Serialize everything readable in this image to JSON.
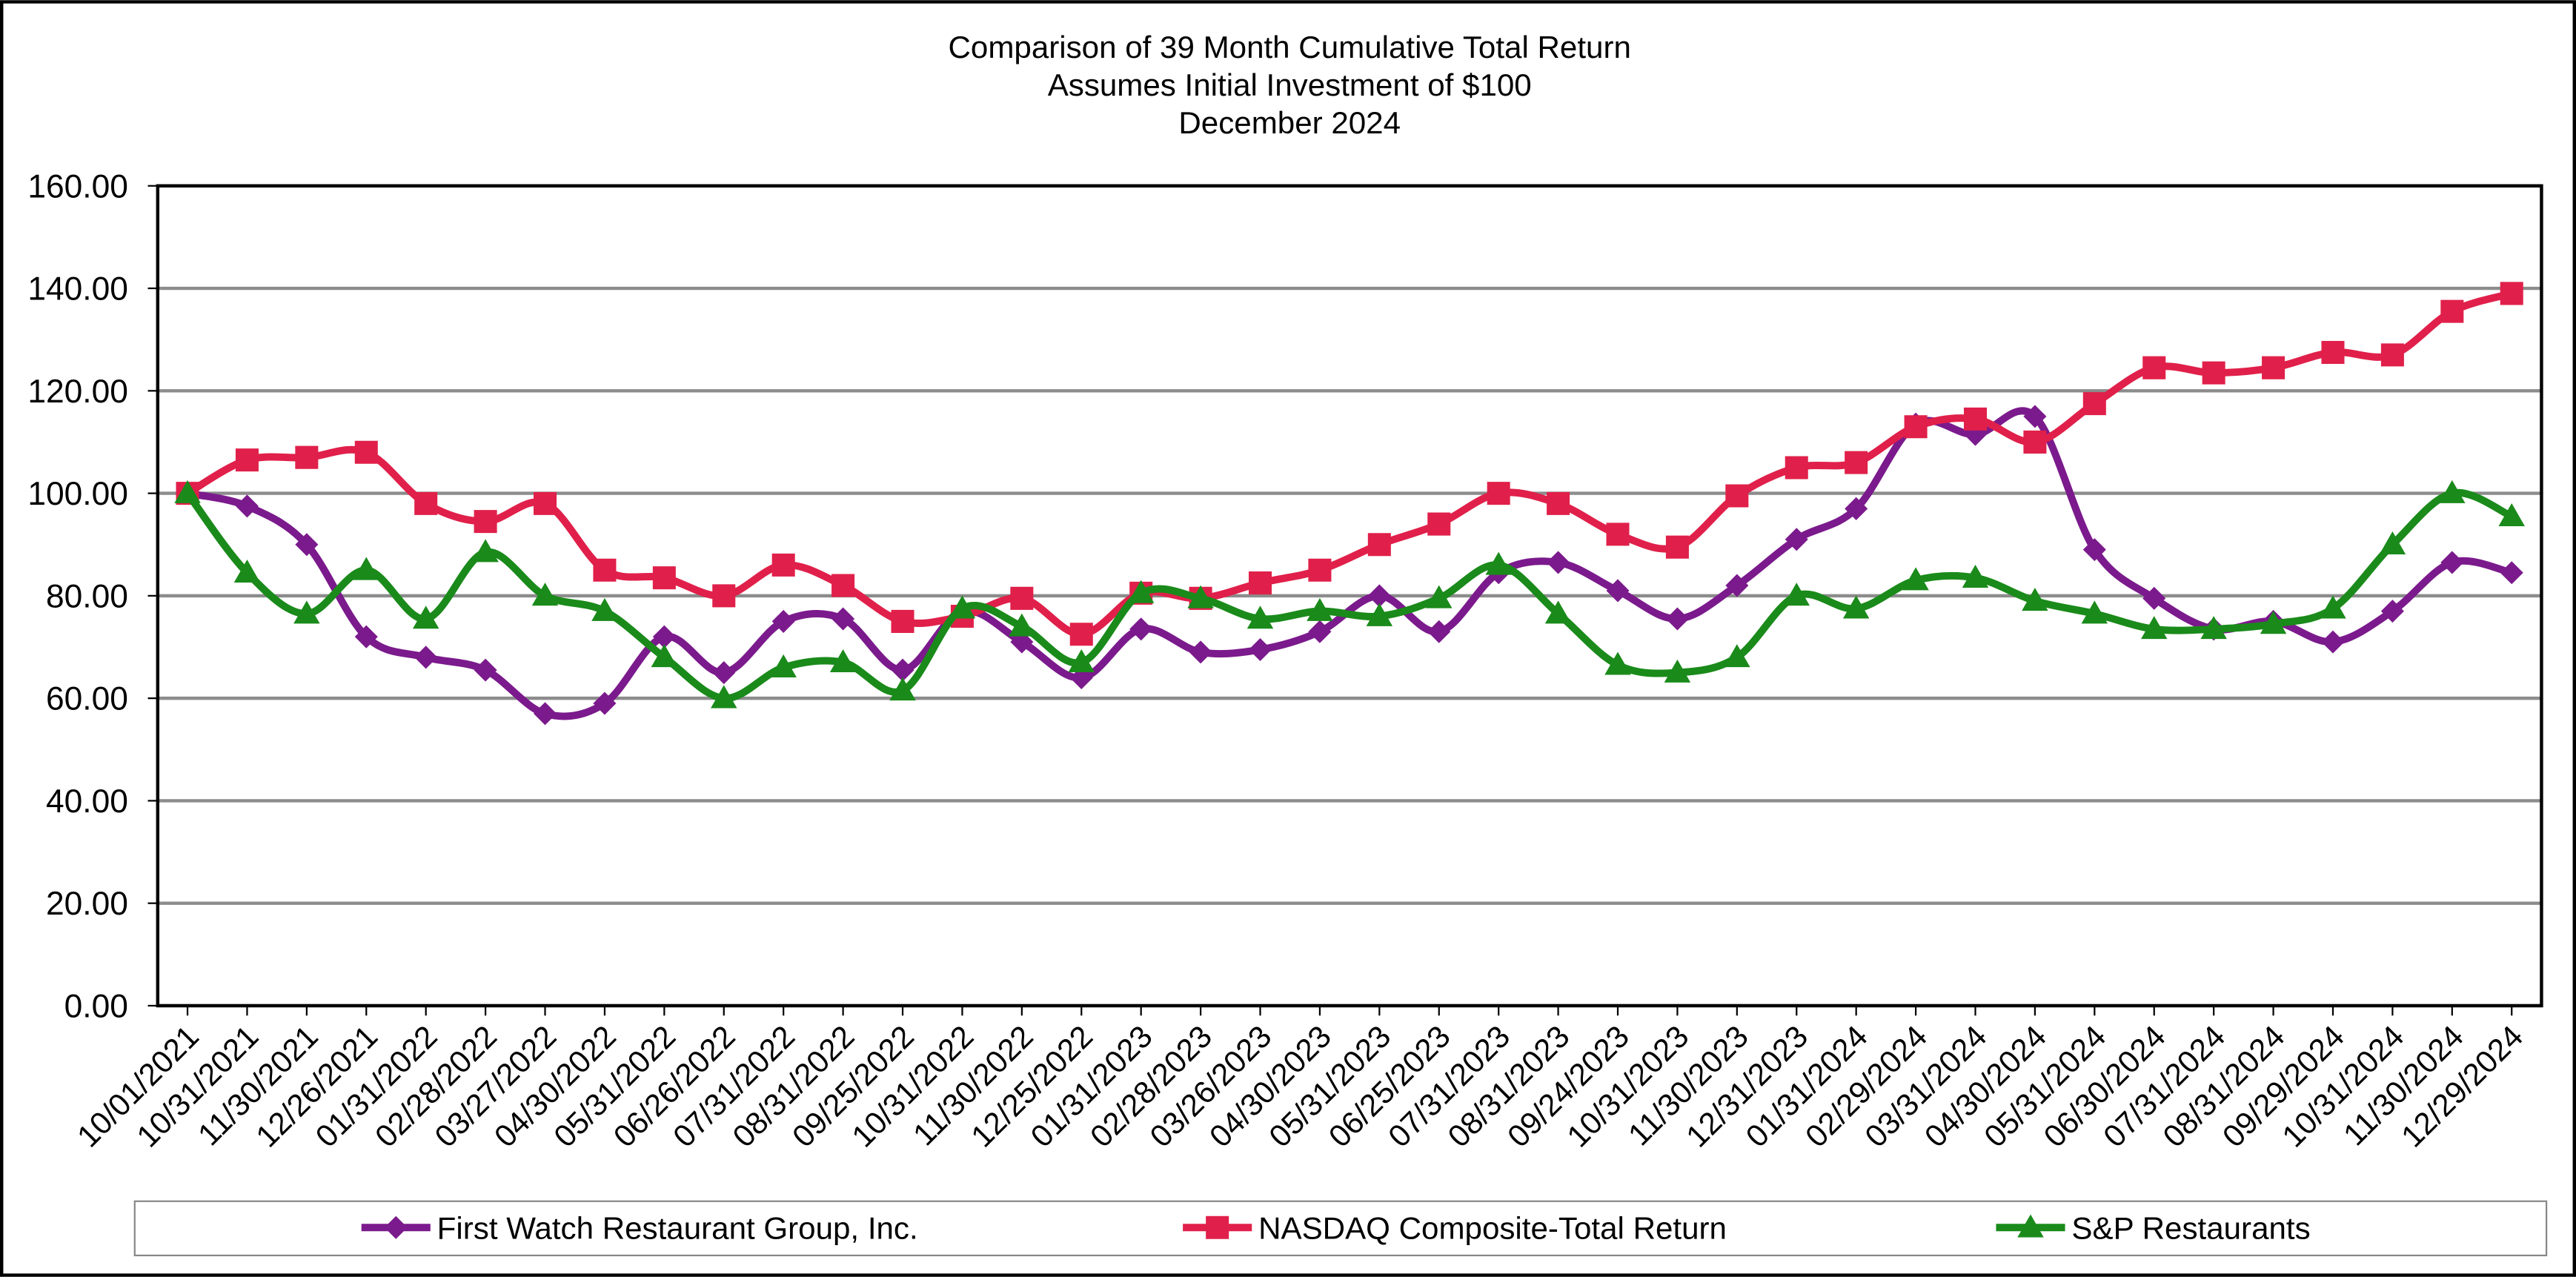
{
  "chart_data": {
    "type": "line",
    "title": [
      "Comparison of 39 Month Cumulative Total Return",
      "Assumes Initial Investment of $100",
      "December 2024"
    ],
    "categories": [
      "10/01/2021",
      "10/31/2021",
      "11/30/2021",
      "12/26/2021",
      "01/31/2022",
      "02/28/2022",
      "03/27/2022",
      "04/30/2022",
      "05/31/2022",
      "06/26/2022",
      "07/31/2022",
      "08/31/2022",
      "09/25/2022",
      "10/31/2022",
      "11/30/2022",
      "12/25/2022",
      "01/31/2023",
      "02/28/2023",
      "03/26/2023",
      "04/30/2023",
      "05/31/2023",
      "06/25/2023",
      "07/31/2023",
      "08/31/2023",
      "09/24/2023",
      "10/31/2023",
      "11/30/2023",
      "12/31/2023",
      "01/31/2024",
      "02/29/2024",
      "03/31/2024",
      "04/30/2024",
      "05/31/2024",
      "06/30/2024",
      "07/31/2024",
      "08/31/2024",
      "09/29/2024",
      "10/31/2024",
      "11/30/2024",
      "12/29/2024"
    ],
    "series": [
      {
        "name": "First Watch Restaurant Group, Inc.",
        "color": "#7b1a8c",
        "marker": "diamond",
        "values": [
          100,
          97.5,
          90,
          72,
          68,
          65.5,
          57,
          59,
          72,
          65,
          75,
          75.5,
          65.5,
          77,
          71,
          64,
          73.5,
          69,
          69.5,
          73,
          80,
          73,
          84.5,
          86.5,
          81,
          75.5,
          82,
          91,
          97,
          113.5,
          111.5,
          115,
          89,
          79.5,
          73.5,
          75,
          71,
          77,
          86.5,
          84.5
        ]
      },
      {
        "name": "NASDAQ Composite-Total Return",
        "color": "#e0204a",
        "marker": "square",
        "values": [
          100,
          106.5,
          107,
          108,
          98,
          94.5,
          98,
          85,
          83.5,
          80,
          86,
          82,
          75,
          76,
          79.5,
          72.5,
          80.5,
          79.5,
          82.5,
          85,
          90,
          94,
          100,
          98,
          92,
          89.5,
          99.5,
          105,
          106,
          113,
          114.5,
          110,
          117.5,
          124.5,
          123.5,
          124.5,
          127.5,
          127,
          135.5,
          139
        ]
      },
      {
        "name": "S&P Restaurants",
        "color": "#1a8a1a",
        "marker": "triangle",
        "values": [
          100,
          84.5,
          76.5,
          85,
          75.5,
          88.5,
          80,
          77,
          68,
          60,
          66,
          67,
          61.5,
          77.5,
          74,
          67,
          80.5,
          79.5,
          75.5,
          77,
          76,
          79.5,
          86,
          76.5,
          66.5,
          65,
          68,
          80,
          77.5,
          83,
          83.5,
          79,
          76.5,
          73.5,
          73.5,
          74.5,
          77.5,
          90,
          100,
          95.5
        ]
      }
    ],
    "ylim": [
      0,
      160
    ],
    "yticks": [
      {
        "value": 0,
        "label": "0.00"
      },
      {
        "value": 20,
        "label": "20.00"
      },
      {
        "value": 40,
        "label": "40.00"
      },
      {
        "value": 60,
        "label": "60.00"
      },
      {
        "value": 80,
        "label": "80.00"
      },
      {
        "value": 100,
        "label": "100.00"
      },
      {
        "value": 120,
        "label": "120.00"
      },
      {
        "value": 140,
        "label": "140.00"
      },
      {
        "value": 160,
        "label": "160.00"
      }
    ],
    "grid": true,
    "legend": "bottom"
  }
}
